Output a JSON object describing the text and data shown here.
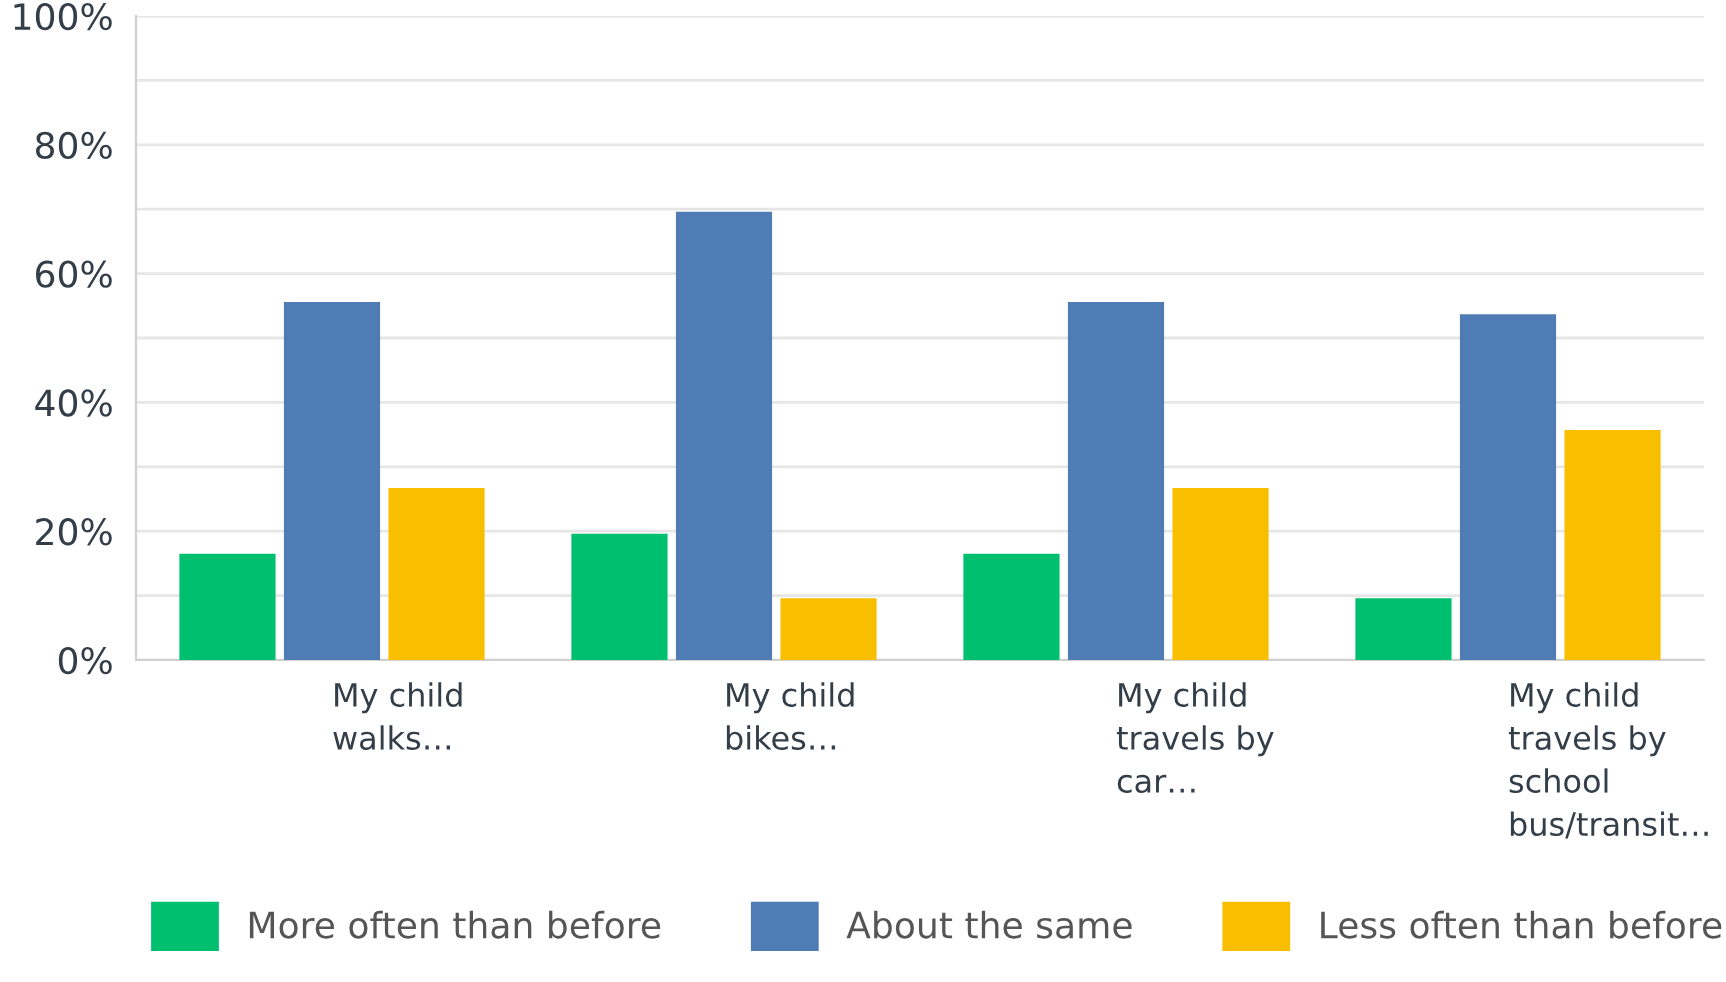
{
  "chart_data": {
    "type": "bar",
    "categories": [
      "My child\nwalks…",
      "My child\nbikes…",
      "My child\ntravels by\ncar…",
      "My child\ntravels by\nschool\nbus/transit…"
    ],
    "series": [
      {
        "name": "More often than before",
        "color": "#00bf6f",
        "values": [
          16.5,
          19.6,
          16.5,
          9.6
        ]
      },
      {
        "name": "About the same",
        "color": "#507cb6",
        "values": [
          55.6,
          69.6,
          55.6,
          53.7
        ]
      },
      {
        "name": "Less often than before",
        "color": "#f9be00",
        "values": [
          26.7,
          9.6,
          26.7,
          35.7
        ]
      }
    ],
    "ylim": [
      0,
      100
    ],
    "yticks": [
      {
        "value": 0,
        "label": "0%"
      },
      {
        "value": 10,
        "label": null
      },
      {
        "value": 20,
        "label": "20%"
      },
      {
        "value": 30,
        "label": null
      },
      {
        "value": 40,
        "label": "40%"
      },
      {
        "value": 50,
        "label": null
      },
      {
        "value": 60,
        "label": "60%"
      },
      {
        "value": 70,
        "label": null
      },
      {
        "value": 80,
        "label": "80%"
      },
      {
        "value": 90,
        "label": null
      },
      {
        "value": 100,
        "label": "100%"
      }
    ],
    "grid": "y",
    "legend": "bottom"
  }
}
